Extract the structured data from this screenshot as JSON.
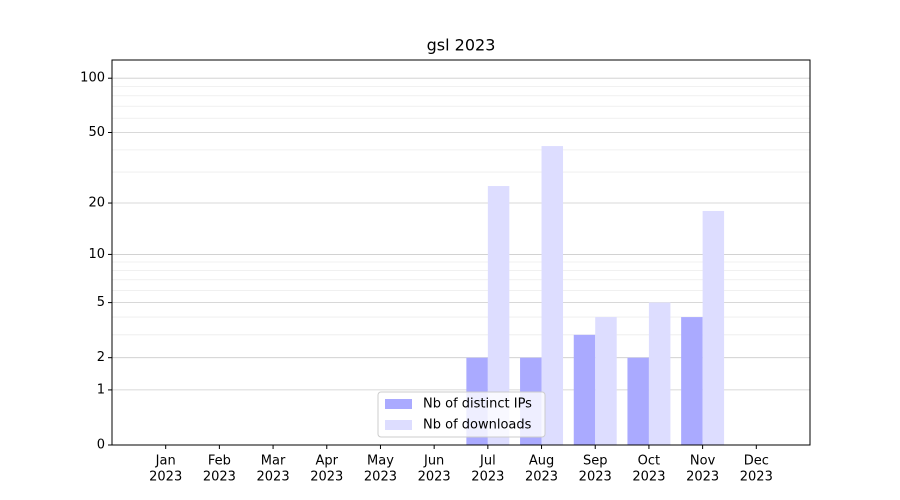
{
  "chart_data": {
    "type": "bar",
    "title": "gsl 2023",
    "categories": [
      [
        "Jan",
        "2023"
      ],
      [
        "Feb",
        "2023"
      ],
      [
        "Mar",
        "2023"
      ],
      [
        "Apr",
        "2023"
      ],
      [
        "May",
        "2023"
      ],
      [
        "Jun",
        "2023"
      ],
      [
        "Jul",
        "2023"
      ],
      [
        "Aug",
        "2023"
      ],
      [
        "Sep",
        "2023"
      ],
      [
        "Oct",
        "2023"
      ],
      [
        "Nov",
        "2023"
      ],
      [
        "Dec",
        "2023"
      ]
    ],
    "series": [
      {
        "name": "Nb of distinct IPs",
        "color": "#aaaaff",
        "values": [
          0,
          0,
          0,
          0,
          0,
          0,
          2,
          2,
          3,
          2,
          4,
          0
        ]
      },
      {
        "name": "Nb of downloads",
        "color": "#ddddff",
        "values": [
          0,
          0,
          0,
          0,
          0,
          0,
          25,
          42,
          4,
          5,
          18,
          0
        ]
      }
    ],
    "yscale": "log1p",
    "ylim": [
      0,
      126
    ],
    "yticks": [
      0,
      1,
      2,
      5,
      10,
      20,
      50,
      100
    ],
    "minor_yticks": [
      3,
      4,
      6,
      7,
      8,
      9,
      30,
      40,
      60,
      70,
      80,
      90
    ],
    "grid": true,
    "legend": "lower center"
  }
}
